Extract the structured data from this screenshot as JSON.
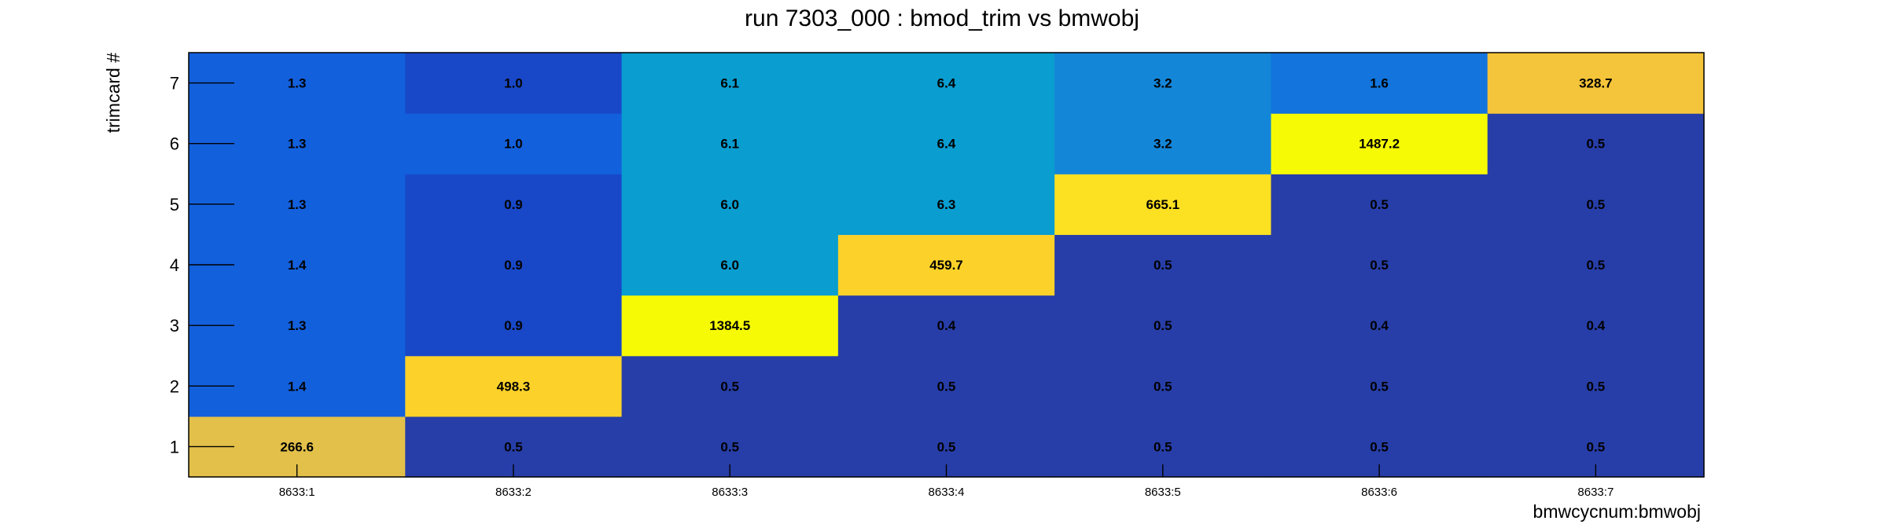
{
  "chart_data": {
    "type": "heatmap",
    "title": "run 7303_000 : bmod_trim vs bmwobj",
    "xlabel": "bmwcycnum:bmwobj",
    "ylabel": "trimcard #",
    "x_categories": [
      "8633:1",
      "8633:2",
      "8633:3",
      "8633:4",
      "8633:5",
      "8633:6",
      "8633:7"
    ],
    "y_categories": [
      "1",
      "2",
      "3",
      "4",
      "5",
      "6",
      "7"
    ],
    "z_range": [
      0.4,
      1487.2
    ],
    "grid": false,
    "legend": "none",
    "colors": {
      "dark_blue": "#273ea8",
      "mid_blue": "#1848c8",
      "blue": "#1360dd",
      "light_blue": "#1486d8",
      "cyan": "#0a9dd0",
      "gold_dark": "#e2c04a",
      "gold": "#f4c43a",
      "amber": "#fcd22a",
      "yellow": "#f6fa05"
    },
    "cells": [
      {
        "x": "8633:1",
        "y": "1",
        "value": "266.6",
        "color": "#e2c04a"
      },
      {
        "x": "8633:1",
        "y": "2",
        "value": "1.4",
        "color": "#1360dd"
      },
      {
        "x": "8633:1",
        "y": "3",
        "value": "1.3",
        "color": "#1360dd"
      },
      {
        "x": "8633:1",
        "y": "4",
        "value": "1.4",
        "color": "#1360dd"
      },
      {
        "x": "8633:1",
        "y": "5",
        "value": "1.3",
        "color": "#1360dd"
      },
      {
        "x": "8633:1",
        "y": "6",
        "value": "1.3",
        "color": "#1360dd"
      },
      {
        "x": "8633:1",
        "y": "7",
        "value": "1.3",
        "color": "#1360dd"
      },
      {
        "x": "8633:2",
        "y": "1",
        "value": "0.5",
        "color": "#273ea8"
      },
      {
        "x": "8633:2",
        "y": "2",
        "value": "498.3",
        "color": "#fcd22a"
      },
      {
        "x": "8633:2",
        "y": "3",
        "value": "0.9",
        "color": "#1848c8"
      },
      {
        "x": "8633:2",
        "y": "4",
        "value": "0.9",
        "color": "#1848c8"
      },
      {
        "x": "8633:2",
        "y": "5",
        "value": "0.9",
        "color": "#1848c8"
      },
      {
        "x": "8633:2",
        "y": "6",
        "value": "1.0",
        "color": "#1360dd"
      },
      {
        "x": "8633:2",
        "y": "7",
        "value": "1.0",
        "color": "#1848c8"
      },
      {
        "x": "8633:3",
        "y": "1",
        "value": "0.5",
        "color": "#273ea8"
      },
      {
        "x": "8633:3",
        "y": "2",
        "value": "0.5",
        "color": "#273ea8"
      },
      {
        "x": "8633:3",
        "y": "3",
        "value": "1384.5",
        "color": "#f6fa05"
      },
      {
        "x": "8633:3",
        "y": "4",
        "value": "6.0",
        "color": "#0a9dd0"
      },
      {
        "x": "8633:3",
        "y": "5",
        "value": "6.0",
        "color": "#0a9dd0"
      },
      {
        "x": "8633:3",
        "y": "6",
        "value": "6.1",
        "color": "#0a9dd0"
      },
      {
        "x": "8633:3",
        "y": "7",
        "value": "6.1",
        "color": "#0a9dd0"
      },
      {
        "x": "8633:4",
        "y": "1",
        "value": "0.5",
        "color": "#273ea8"
      },
      {
        "x": "8633:4",
        "y": "2",
        "value": "0.5",
        "color": "#273ea8"
      },
      {
        "x": "8633:4",
        "y": "3",
        "value": "0.4",
        "color": "#273ea8"
      },
      {
        "x": "8633:4",
        "y": "4",
        "value": "459.7",
        "color": "#fcd22a"
      },
      {
        "x": "8633:4",
        "y": "5",
        "value": "6.3",
        "color": "#0a9dd0"
      },
      {
        "x": "8633:4",
        "y": "6",
        "value": "6.4",
        "color": "#0a9dd0"
      },
      {
        "x": "8633:4",
        "y": "7",
        "value": "6.4",
        "color": "#0a9dd0"
      },
      {
        "x": "8633:5",
        "y": "1",
        "value": "0.5",
        "color": "#273ea8"
      },
      {
        "x": "8633:5",
        "y": "2",
        "value": "0.5",
        "color": "#273ea8"
      },
      {
        "x": "8633:5",
        "y": "3",
        "value": "0.5",
        "color": "#273ea8"
      },
      {
        "x": "8633:5",
        "y": "4",
        "value": "0.5",
        "color": "#273ea8"
      },
      {
        "x": "8633:5",
        "y": "5",
        "value": "665.1",
        "color": "#fce022"
      },
      {
        "x": "8633:5",
        "y": "6",
        "value": "3.2",
        "color": "#1486d8"
      },
      {
        "x": "8633:5",
        "y": "7",
        "value": "3.2",
        "color": "#1486d8"
      },
      {
        "x": "8633:6",
        "y": "1",
        "value": "0.5",
        "color": "#273ea8"
      },
      {
        "x": "8633:6",
        "y": "2",
        "value": "0.5",
        "color": "#273ea8"
      },
      {
        "x": "8633:6",
        "y": "3",
        "value": "0.4",
        "color": "#273ea8"
      },
      {
        "x": "8633:6",
        "y": "4",
        "value": "0.5",
        "color": "#273ea8"
      },
      {
        "x": "8633:6",
        "y": "5",
        "value": "0.5",
        "color": "#273ea8"
      },
      {
        "x": "8633:6",
        "y": "6",
        "value": "1487.2",
        "color": "#f6fa05"
      },
      {
        "x": "8633:6",
        "y": "7",
        "value": "1.6",
        "color": "#1274dc"
      },
      {
        "x": "8633:7",
        "y": "1",
        "value": "0.5",
        "color": "#273ea8"
      },
      {
        "x": "8633:7",
        "y": "2",
        "value": "0.5",
        "color": "#273ea8"
      },
      {
        "x": "8633:7",
        "y": "3",
        "value": "0.4",
        "color": "#273ea8"
      },
      {
        "x": "8633:7",
        "y": "4",
        "value": "0.5",
        "color": "#273ea8"
      },
      {
        "x": "8633:7",
        "y": "5",
        "value": "0.5",
        "color": "#273ea8"
      },
      {
        "x": "8633:7",
        "y": "6",
        "value": "0.5",
        "color": "#273ea8"
      },
      {
        "x": "8633:7",
        "y": "7",
        "value": "328.7",
        "color": "#f4c43a"
      }
    ]
  }
}
